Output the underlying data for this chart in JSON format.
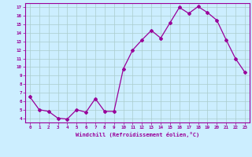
{
  "x": [
    0,
    1,
    2,
    3,
    4,
    5,
    6,
    7,
    8,
    9,
    10,
    11,
    12,
    13,
    14,
    15,
    16,
    17,
    18,
    19,
    20,
    21,
    22,
    23
  ],
  "y": [
    6.5,
    5.0,
    4.8,
    4.0,
    3.9,
    5.0,
    4.7,
    6.3,
    4.8,
    4.8,
    9.8,
    12.0,
    13.2,
    14.3,
    13.4,
    15.2,
    17.0,
    16.3,
    17.1,
    16.4,
    15.5,
    13.2,
    11.0,
    9.4
  ],
  "line_color": "#990099",
  "marker": "D",
  "marker_size": 2,
  "bg_color": "#cceeff",
  "grid_color": "#aacccc",
  "xlabel": "Windchill (Refroidissement éolien,°C)",
  "ylabel_ticks": [
    4,
    5,
    6,
    7,
    8,
    9,
    10,
    11,
    12,
    13,
    14,
    15,
    16,
    17
  ],
  "xlim": [
    -0.5,
    23.5
  ],
  "ylim": [
    3.5,
    17.5
  ],
  "tick_color": "#990099",
  "label_color": "#990099"
}
